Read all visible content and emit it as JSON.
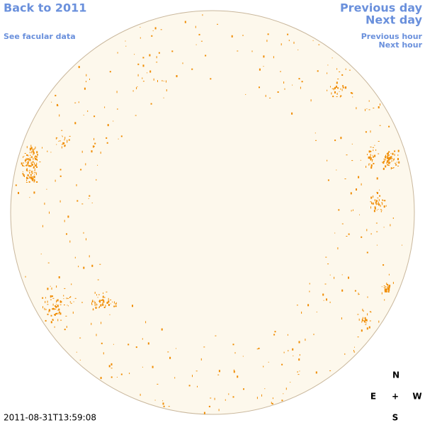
{
  "links": {
    "back": "Back to 2011",
    "facular": "See facular data",
    "previous_day": "Previous day",
    "next_day": "Next day",
    "previous_hour": "Previous hour",
    "next_hour": "Next hour"
  },
  "timestamp": "2011-08-31T13:59:08",
  "compass": {
    "north": "N",
    "east": "E",
    "center": "+",
    "west": "W",
    "south": "S"
  }
}
